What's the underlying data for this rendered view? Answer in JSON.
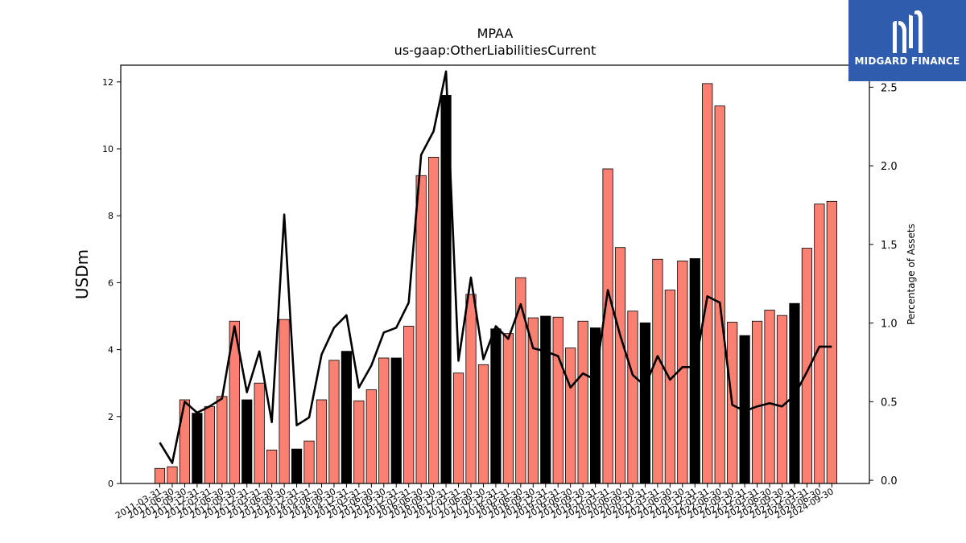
{
  "chart_data": {
    "type": "bar",
    "title": "MPAA",
    "subtitle": "us-gaap:OtherLiabilitiesCurrent",
    "ylabel": "USDm",
    "y2label": "Percentage of Assets",
    "ylim": [
      0,
      12.5
    ],
    "y2lim": [
      -0.02,
      2.64
    ],
    "yticks": [
      0,
      2,
      4,
      6,
      8,
      10,
      12
    ],
    "y2ticks": [
      "0.0",
      "0.5",
      "1.0",
      "1.5",
      "2.0",
      "2.5"
    ],
    "colors": {
      "bar": "#fa8072",
      "bar_year_end": "#000000",
      "line": "#000000"
    },
    "categories": [
      "2011-03-31",
      "2011-06-30",
      "2011-09-30",
      "2011-12-31",
      "2012-03-31",
      "2012-06-30",
      "2012-09-30",
      "2012-12-31",
      "2013-03-31",
      "2013-06-30",
      "2013-09-30",
      "2013-12-31",
      "2014-03-31",
      "2014-06-30",
      "2014-09-30",
      "2014-12-31",
      "2015-03-31",
      "2015-06-30",
      "2015-09-30",
      "2015-12-31",
      "2016-03-31",
      "2016-06-30",
      "2016-09-30",
      "2016-12-31",
      "2017-03-31",
      "2017-06-30",
      "2017-09-30",
      "2017-12-31",
      "2018-03-31",
      "2018-06-30",
      "2018-09-30",
      "2018-12-31",
      "2019-03-31",
      "2019-06-30",
      "2019-09-30",
      "2019-12-31",
      "2020-03-31",
      "2020-06-30",
      "2020-09-30",
      "2020-12-31",
      "2021-03-31",
      "2021-06-30",
      "2021-09-30",
      "2021-12-31",
      "2022-03-31",
      "2022-06-30",
      "2022-09-30",
      "2022-12-31",
      "2023-03-31",
      "2023-06-30",
      "2023-09-30",
      "2023-12-31",
      "2024-03-31",
      "2024-06-30",
      "2024-09-30"
    ],
    "values": [
      0.45,
      0.5,
      2.5,
      2.1,
      2.3,
      2.6,
      4.85,
      2.5,
      3.0,
      1.0,
      4.9,
      1.03,
      1.27,
      2.5,
      3.68,
      3.95,
      2.47,
      2.8,
      3.75,
      3.75,
      4.7,
      9.2,
      9.75,
      11.6,
      3.3,
      5.65,
      3.55,
      4.62,
      4.48,
      6.15,
      4.95,
      5.0,
      4.97,
      4.05,
      4.85,
      4.65,
      9.4,
      7.05,
      5.15,
      4.8,
      6.7,
      5.78,
      6.65,
      6.72,
      11.95,
      11.28,
      4.82,
      4.42,
      4.85,
      5.18,
      5.02,
      5.38,
      7.03,
      8.35,
      8.43
    ],
    "year_end": [
      false,
      false,
      false,
      true,
      false,
      false,
      false,
      true,
      false,
      false,
      false,
      true,
      false,
      false,
      false,
      true,
      false,
      false,
      false,
      true,
      false,
      false,
      false,
      true,
      false,
      false,
      false,
      true,
      false,
      false,
      false,
      true,
      false,
      false,
      false,
      true,
      false,
      false,
      false,
      true,
      false,
      false,
      false,
      true,
      false,
      false,
      false,
      true,
      false,
      false,
      false,
      true,
      false,
      false,
      false
    ],
    "pct_of_assets": [
      0.24,
      0.11,
      0.5,
      0.43,
      0.47,
      0.52,
      0.98,
      0.56,
      0.82,
      0.37,
      1.69,
      0.35,
      0.4,
      0.8,
      0.97,
      1.05,
      0.59,
      0.73,
      0.94,
      0.97,
      1.13,
      2.07,
      2.22,
      2.6,
      0.76,
      1.29,
      0.77,
      0.98,
      0.9,
      1.12,
      0.84,
      0.82,
      0.79,
      0.59,
      0.68,
      0.64,
      1.21,
      0.92,
      0.67,
      0.6,
      0.79,
      0.64,
      0.72,
      0.72,
      1.17,
      1.13,
      0.48,
      0.44,
      0.47,
      0.49,
      0.47,
      0.54,
      0.69,
      0.85,
      0.85
    ]
  },
  "branding": {
    "logo_text": "MIDGARD FINANCE"
  }
}
